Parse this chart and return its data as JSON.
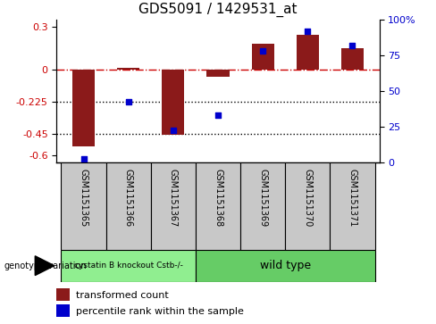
{
  "title": "GDS5091 / 1429531_at",
  "samples": [
    "GSM1151365",
    "GSM1151366",
    "GSM1151367",
    "GSM1151368",
    "GSM1151369",
    "GSM1151370",
    "GSM1151371"
  ],
  "red_values": [
    -0.54,
    0.01,
    -0.46,
    -0.05,
    0.18,
    0.24,
    0.15
  ],
  "blue_values_right": [
    2,
    42,
    22,
    33,
    78,
    92,
    82
  ],
  "ylim_left": [
    -0.65,
    0.35
  ],
  "ylim_right": [
    0,
    100
  ],
  "yticks_left": [
    0.3,
    0,
    -0.225,
    -0.45,
    -0.6
  ],
  "yticks_right": [
    100,
    75,
    50,
    25,
    0
  ],
  "hline_y": 0,
  "dotted_lines": [
    -0.225,
    -0.45
  ],
  "group1_count": 3,
  "group1_label": "cystatin B knockout Cstb-/-",
  "group2_label": "wild type",
  "group1_color": "#90EE90",
  "group2_color": "#66CC66",
  "bar_color": "#8B1A1A",
  "dot_color": "#0000CC",
  "bar_width": 0.5,
  "legend_red_label": "transformed count",
  "legend_blue_label": "percentile rank within the sample",
  "background_color": "#ffffff",
  "tick_label_area_color": "#c8c8c8",
  "left_axis_color": "#cc0000",
  "right_axis_color": "#0000cc"
}
